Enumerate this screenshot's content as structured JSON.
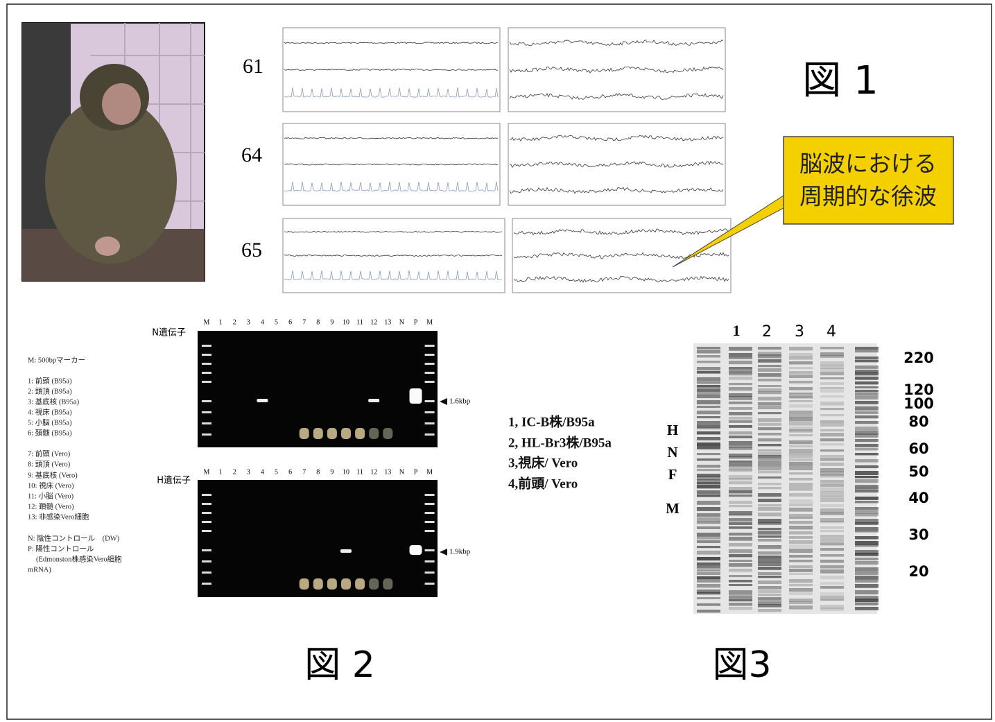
{
  "figure1": {
    "label": "図 1",
    "eeg_rows": [
      "61",
      "64",
      "65"
    ],
    "callout": [
      "脳波における",
      "周期的な徐波"
    ]
  },
  "figure2": {
    "label": "図 2",
    "lanes": [
      "M",
      "1",
      "2",
      "3",
      "4",
      "5",
      "6",
      "7",
      "8",
      "9",
      "10",
      "11",
      "12",
      "13",
      "N",
      "P",
      "M"
    ],
    "gels": [
      {
        "gene": "N遺伝子",
        "size": "1.6kbp"
      },
      {
        "gene": "H遺伝子",
        "size": "1.9kbp"
      }
    ],
    "legend": [
      "M: 500bpマーカー",
      "1: 前頭 (B95a)",
      "2: 頭頂 (B95a)",
      "3: 基底核 (B95a)",
      "4: 視床 (B95a)",
      "5: 小脳 (B95a)",
      "6: 頚髄 (B95a)",
      "7: 前頭 (Vero)",
      "8: 頭頂 (Vero)",
      "9: 基底核 (Vero)",
      "10: 視床 (Vero)",
      "11: 小脳 (Vero)",
      "12: 頚髄 (Vero)",
      "13: 非感染Vero細胞",
      "N: 陰性コントロール　(DW)",
      "P: 陽性コントロール",
      "(Edmonston株感染Vero細胞",
      "mRNA)"
    ]
  },
  "sample_key": [
    "1, IC-B株/B95a",
    "2, HL-Br3株/B95a",
    "3,視床/ Vero",
    "4,前頭/ Vero"
  ],
  "figure3": {
    "label": "図3",
    "lanes": [
      "1",
      "2",
      "3",
      "4"
    ],
    "markers": [
      "220",
      "120",
      "100",
      "80",
      "60",
      "50",
      "40",
      "30",
      "20"
    ],
    "proteins": [
      "H",
      "N",
      "F",
      "M"
    ]
  }
}
